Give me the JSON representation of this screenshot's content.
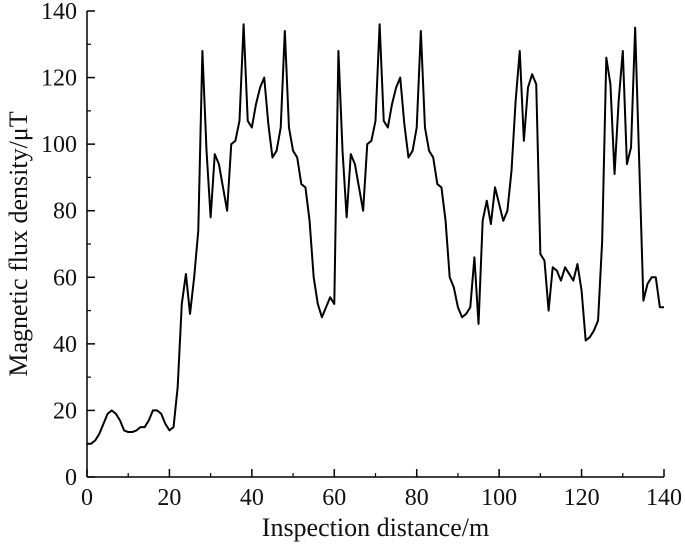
{
  "chart_data": {
    "type": "line",
    "xlabel": "Inspection distance/m",
    "ylabel": "Magnetic flux density/μT",
    "xlim": [
      0,
      140
    ],
    "ylim": [
      0,
      140
    ],
    "x_ticks": [
      0,
      20,
      40,
      60,
      80,
      100,
      120,
      140
    ],
    "y_ticks": [
      0,
      20,
      40,
      60,
      80,
      100,
      120,
      140
    ],
    "grid": false,
    "legend": "none",
    "line_color": "#000000",
    "series": [
      {
        "x": [
          0,
          1,
          2,
          3,
          4,
          5,
          6,
          7,
          8,
          9,
          10,
          11,
          12,
          13,
          14,
          15,
          16,
          17,
          18,
          19,
          20,
          21,
          22,
          23,
          24,
          25,
          26,
          27,
          28,
          29,
          30,
          31,
          32,
          33,
          34,
          35,
          36,
          37,
          38,
          39,
          40,
          41,
          42,
          43,
          44,
          45,
          46,
          47,
          48,
          49,
          50,
          51,
          52,
          53,
          54,
          55,
          56,
          57,
          58,
          59,
          60,
          61,
          62,
          63,
          64,
          65,
          66,
          67,
          68,
          69,
          70,
          71,
          72,
          73,
          74,
          75,
          76,
          77,
          78,
          79,
          80,
          81,
          82,
          83,
          84,
          85,
          86,
          87,
          88,
          89,
          90,
          91,
          92,
          93,
          94,
          95,
          96,
          97,
          98,
          99,
          100,
          101,
          102,
          103,
          104,
          105,
          106,
          107,
          108,
          109,
          110,
          111,
          112,
          113,
          114,
          115,
          116,
          117,
          118,
          119,
          120,
          121,
          122,
          123,
          124,
          125,
          126,
          127,
          128,
          129,
          130,
          131,
          132,
          133,
          134,
          135,
          136,
          137,
          138,
          139,
          140
        ],
        "y": [
          10,
          10,
          11,
          13,
          16,
          19,
          20,
          19,
          17,
          14,
          13.5,
          13.5,
          14,
          15,
          15,
          17,
          20,
          20,
          19,
          16,
          14,
          15,
          27,
          52,
          61,
          49,
          60,
          74,
          128,
          98,
          78,
          97,
          94,
          87,
          80,
          100,
          101,
          107,
          136,
          107,
          105,
          112,
          117,
          120,
          106,
          96,
          98,
          105,
          134,
          105,
          98,
          96,
          88,
          87,
          77,
          60,
          52,
          48,
          51,
          54,
          52,
          128,
          98,
          78,
          97,
          94,
          87,
          80,
          100,
          101,
          107,
          136,
          107,
          105,
          112,
          117,
          120,
          106,
          96,
          98,
          105,
          134,
          105,
          98,
          96,
          88,
          87,
          77,
          60,
          57,
          51,
          48,
          49,
          51,
          66,
          46,
          77,
          83,
          76,
          87,
          82,
          77,
          80,
          92,
          113,
          128,
          101,
          117,
          121,
          118,
          67,
          65,
          50,
          63,
          62,
          59,
          63,
          61,
          59,
          64,
          56,
          41,
          42,
          44,
          47,
          71,
          126,
          118,
          91,
          113,
          128,
          94,
          99,
          135,
          94,
          53,
          58,
          60,
          60,
          51,
          51
        ]
      }
    ]
  }
}
